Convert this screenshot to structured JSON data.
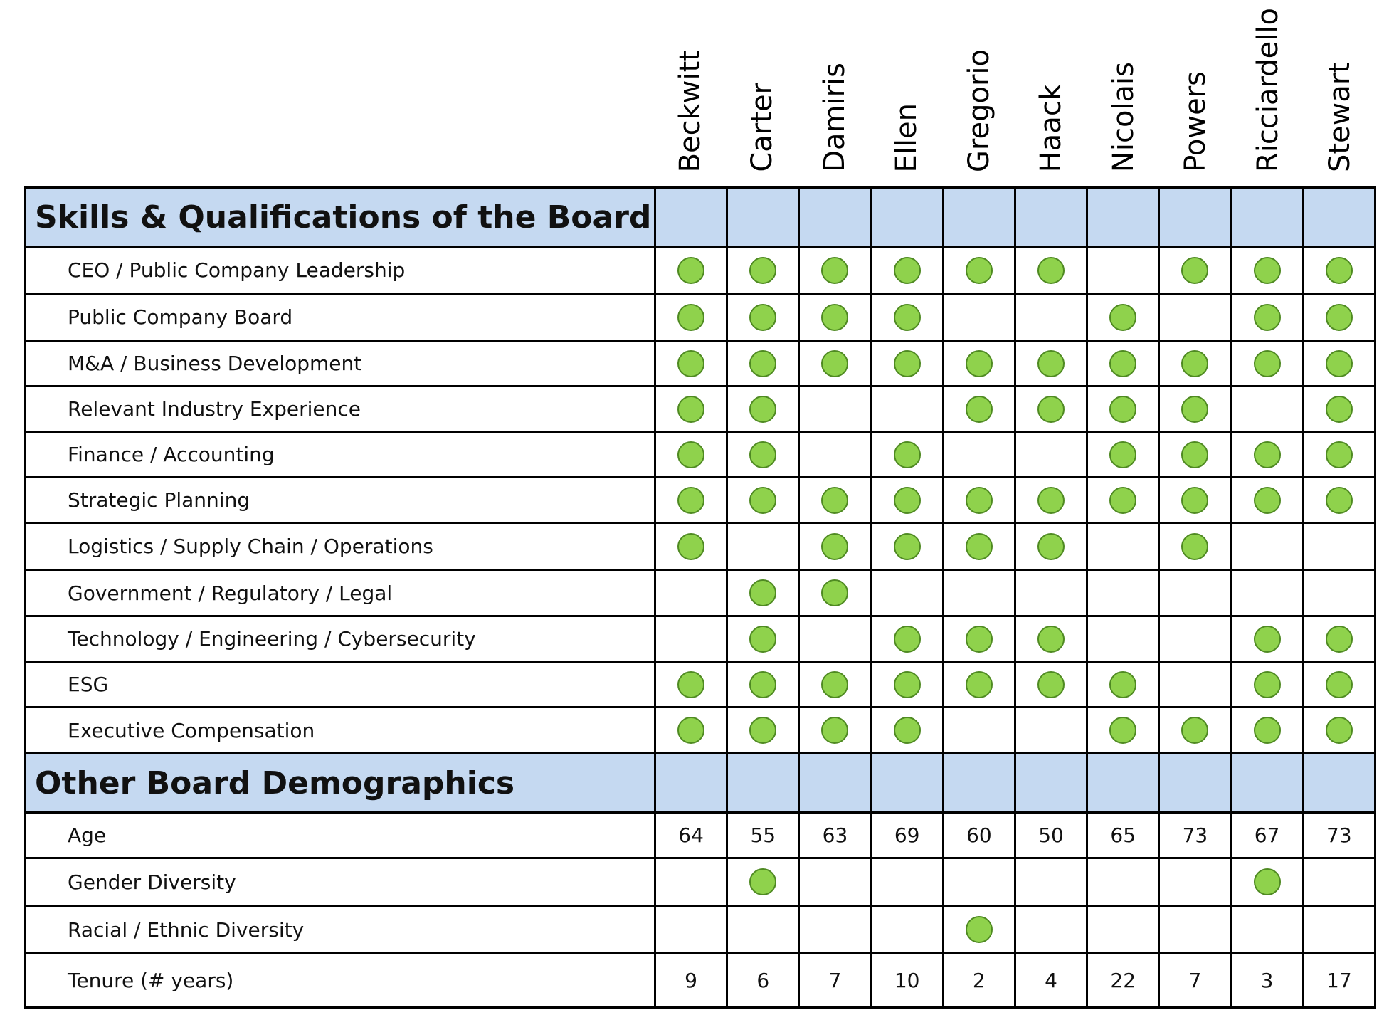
{
  "members": [
    "Beckwitt",
    "Carter",
    "Damiris",
    "Ellen",
    "Gregorio",
    "Haack",
    "Nicolais",
    "Powers",
    "Ricciardello",
    "Stewart"
  ],
  "skills_section": {
    "title": "Skills & Qualifications of the Board",
    "rows": [
      {
        "label": "CEO / Public Company Leadership",
        "marks": [
          1,
          1,
          1,
          1,
          1,
          1,
          0,
          1,
          1,
          1
        ]
      },
      {
        "label": "Public Company Board",
        "marks": [
          1,
          1,
          1,
          1,
          0,
          0,
          1,
          0,
          1,
          1
        ]
      },
      {
        "label": "M&A / Business Development",
        "marks": [
          1,
          1,
          1,
          1,
          1,
          1,
          1,
          1,
          1,
          1
        ]
      },
      {
        "label": "Relevant Industry Experience",
        "marks": [
          1,
          1,
          0,
          0,
          1,
          1,
          1,
          1,
          0,
          1
        ]
      },
      {
        "label": "Finance / Accounting",
        "marks": [
          1,
          1,
          0,
          1,
          0,
          0,
          1,
          1,
          1,
          1
        ]
      },
      {
        "label": "Strategic Planning",
        "marks": [
          1,
          1,
          1,
          1,
          1,
          1,
          1,
          1,
          1,
          1
        ]
      },
      {
        "label": "Logistics / Supply Chain / Operations",
        "marks": [
          1,
          0,
          1,
          1,
          1,
          1,
          0,
          1,
          0,
          0
        ]
      },
      {
        "label": "Government / Regulatory / Legal",
        "marks": [
          0,
          1,
          1,
          0,
          0,
          0,
          0,
          0,
          0,
          0
        ]
      },
      {
        "label": "Technology / Engineering / Cybersecurity",
        "marks": [
          0,
          1,
          0,
          1,
          1,
          1,
          0,
          0,
          1,
          1
        ]
      },
      {
        "label": "ESG",
        "marks": [
          1,
          1,
          1,
          1,
          1,
          1,
          1,
          0,
          1,
          1
        ]
      },
      {
        "label": "Executive Compensation",
        "marks": [
          1,
          1,
          1,
          1,
          0,
          0,
          1,
          1,
          1,
          1
        ]
      }
    ]
  },
  "demographics_section": {
    "title": "Other Board Demographics",
    "rows": [
      {
        "label": "Age",
        "values": [
          "64",
          "55",
          "63",
          "69",
          "60",
          "50",
          "65",
          "73",
          "67",
          "73"
        ]
      },
      {
        "label": "Gender Diversity",
        "marks": [
          0,
          1,
          0,
          0,
          0,
          0,
          0,
          0,
          1,
          0
        ]
      },
      {
        "label": "Racial / Ethnic Diversity",
        "marks": [
          0,
          0,
          0,
          0,
          1,
          0,
          0,
          0,
          0,
          0
        ]
      },
      {
        "label": "Tenure (# years)",
        "values": [
          "9",
          "6",
          "7",
          "10",
          "2",
          "4",
          "22",
          "7",
          "3",
          "17"
        ]
      }
    ]
  },
  "colors": {
    "header_fill": "#c5d9f1",
    "dot_fill": "#8fd24c",
    "dot_border": "#4f8a22"
  }
}
